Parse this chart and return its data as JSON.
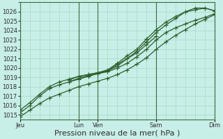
{
  "title": "",
  "xlabel": "Pression niveau de la mer( hPa )",
  "ylabel": "",
  "bg_color": "#c8eee8",
  "grid_color": "#aaddcc",
  "line_color": "#2a5f2a",
  "ylim": [
    1014.5,
    1027.0
  ],
  "yticks": [
    1015,
    1016,
    1017,
    1018,
    1019,
    1020,
    1021,
    1022,
    1023,
    1024,
    1025,
    1026
  ],
  "xtick_labels": [
    "Jeu",
    "Lun",
    "Ven",
    "Sam",
    "Dim"
  ],
  "xtick_positions": [
    0,
    6,
    8,
    14,
    20
  ],
  "vline_positions": [
    0,
    6,
    8,
    14,
    20
  ],
  "series1_x": [
    0,
    1,
    2,
    3,
    4,
    5,
    6,
    7,
    8,
    9,
    10,
    11,
    12,
    13,
    14,
    15,
    16,
    17,
    18,
    19,
    20
  ],
  "series1": [
    1014.8,
    1015.5,
    1016.2,
    1016.8,
    1017.2,
    1017.6,
    1018.0,
    1018.3,
    1018.6,
    1018.9,
    1019.3,
    1019.8,
    1020.4,
    1021.1,
    1022.0,
    1022.8,
    1023.5,
    1024.1,
    1024.7,
    1025.2,
    1025.7
  ],
  "series2_x": [
    0,
    1,
    2,
    3,
    4,
    5,
    6,
    7,
    8,
    9,
    10,
    11,
    12,
    13,
    14,
    15,
    16,
    17,
    18,
    19,
    20
  ],
  "series2": [
    1015.2,
    1016.0,
    1017.0,
    1017.8,
    1018.2,
    1018.5,
    1018.8,
    1019.1,
    1019.4,
    1019.6,
    1020.0,
    1020.5,
    1021.2,
    1022.0,
    1023.0,
    1023.8,
    1024.3,
    1024.7,
    1025.1,
    1025.4,
    1025.8
  ],
  "series3_x": [
    0,
    1,
    2,
    3,
    4,
    5,
    6,
    7,
    8,
    9,
    10,
    11,
    12,
    13,
    14
  ],
  "series3": [
    1015.5,
    1016.3,
    1017.2,
    1018.0,
    1018.5,
    1018.8,
    1019.1,
    1019.3,
    1019.5,
    1019.7,
    1020.4,
    1021.0,
    1021.6,
    1022.5,
    1023.4
  ],
  "series4_x": [
    5,
    6,
    7,
    8,
    9,
    10,
    11,
    12,
    13,
    14,
    15,
    16,
    17,
    18,
    19,
    20
  ],
  "series4": [
    1018.7,
    1019.1,
    1019.3,
    1019.5,
    1019.8,
    1020.5,
    1021.3,
    1022.0,
    1023.1,
    1024.1,
    1024.9,
    1025.5,
    1026.0,
    1026.2,
    1026.4,
    1026.1
  ],
  "series5_x": [
    5,
    6,
    7,
    8,
    9,
    10,
    11,
    12,
    13,
    14,
    15,
    16,
    17,
    18,
    19,
    20
  ],
  "series5": [
    1018.5,
    1018.9,
    1019.2,
    1019.4,
    1019.7,
    1020.2,
    1021.0,
    1021.8,
    1022.8,
    1023.8,
    1024.6,
    1025.3,
    1026.0,
    1026.4,
    1026.4,
    1026.1
  ],
  "xlabel_fontsize": 8,
  "tick_fontsize": 6,
  "marker": "+",
  "markersize": 4.0,
  "linewidth": 0.9
}
